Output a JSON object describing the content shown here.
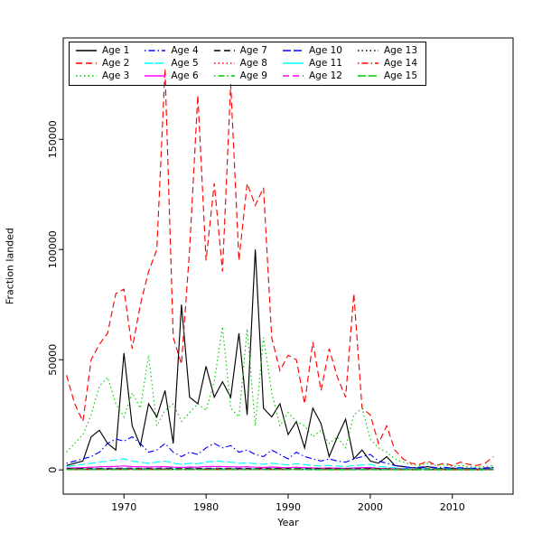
{
  "chart_data": {
    "type": "line",
    "title": "",
    "xlabel": "Year",
    "ylabel": "Fraction landed",
    "x_ticks": [
      1970,
      1980,
      1990,
      2000,
      2010
    ],
    "x_tick_labels": [
      "1970",
      "1980",
      "1990",
      "2000",
      "2010"
    ],
    "y_ticks": [
      0,
      50000,
      100000,
      150000
    ],
    "y_tick_labels": [
      "0",
      "50000",
      "100000",
      "150000"
    ],
    "xlim": [
      1962.6,
      2017.4
    ],
    "ylim": [
      -11000,
      196000
    ],
    "grid": false,
    "legend_position": "top-left-inside",
    "years": [
      1963,
      1964,
      1965,
      1966,
      1967,
      1968,
      1969,
      1970,
      1971,
      1972,
      1973,
      1974,
      1975,
      1976,
      1977,
      1978,
      1979,
      1980,
      1981,
      1982,
      1983,
      1984,
      1985,
      1986,
      1987,
      1988,
      1989,
      1990,
      1991,
      1992,
      1993,
      1994,
      1995,
      1996,
      1997,
      1998,
      1999,
      2000,
      2001,
      2002,
      2003,
      2004,
      2005,
      2006,
      2007,
      2008,
      2009,
      2010,
      2011,
      2012,
      2013,
      2014,
      2015
    ],
    "series": [
      {
        "name": "Age 1",
        "color": "#000000",
        "dash": "solid",
        "values": [
          2000,
          3000,
          4000,
          15000,
          18000,
          12000,
          9000,
          53000,
          20000,
          11000,
          30000,
          24000,
          36000,
          12000,
          75000,
          33000,
          30000,
          47000,
          33000,
          40000,
          33000,
          62000,
          25000,
          100000,
          28000,
          24000,
          30000,
          16000,
          22000,
          10000,
          28000,
          21000,
          6000,
          15000,
          23000,
          5000,
          9000,
          4000,
          3000,
          6000,
          2000,
          1500,
          1000,
          800,
          1500,
          700,
          600,
          800,
          500,
          700,
          400,
          600,
          900
        ]
      },
      {
        "name": "Age 2",
        "color": "#ff0000",
        "dash": "dashed",
        "values": [
          43000,
          30000,
          22000,
          50000,
          57000,
          62000,
          80000,
          82000,
          55000,
          75000,
          90000,
          100000,
          182000,
          60000,
          48000,
          100000,
          170000,
          95000,
          130000,
          90000,
          175000,
          95000,
          130000,
          120000,
          128000,
          60000,
          45000,
          52000,
          50000,
          30000,
          58000,
          36000,
          55000,
          42000,
          33000,
          80000,
          28000,
          25000,
          12000,
          20000,
          9000,
          5000,
          3000,
          2500,
          4000,
          2000,
          3000,
          2000,
          3500,
          2500,
          2000,
          3000,
          6000
        ]
      },
      {
        "name": "Age 3",
        "color": "#00cc00",
        "dash": "dotted",
        "values": [
          8000,
          12000,
          16000,
          25000,
          38000,
          42000,
          30000,
          24000,
          35000,
          28000,
          52000,
          20000,
          27000,
          30000,
          22000,
          26000,
          30000,
          27000,
          40000,
          65000,
          28000,
          24000,
          64000,
          20000,
          60000,
          35000,
          20000,
          26000,
          22000,
          20000,
          15000,
          18000,
          12000,
          15000,
          10000,
          25000,
          28000,
          14000,
          10000,
          8000,
          5000,
          3500,
          2500,
          2000,
          3000,
          2000,
          2500,
          1500,
          2000,
          1500,
          1200,
          1500,
          2000
        ]
      },
      {
        "name": "Age 4",
        "color": "#0000ff",
        "dash": "dotdash",
        "values": [
          3000,
          4000,
          5000,
          6000,
          8000,
          12000,
          14000,
          13000,
          15000,
          12000,
          8000,
          9000,
          12000,
          8000,
          6000,
          8000,
          7000,
          10000,
          12000,
          10000,
          11000,
          8000,
          9000,
          7000,
          6000,
          9000,
          7000,
          5000,
          8000,
          6000,
          5000,
          4000,
          5000,
          4000,
          3500,
          5000,
          6000,
          7000,
          4000,
          3000,
          2000,
          1500,
          1000,
          1200,
          1500,
          1000,
          1200,
          800,
          1000,
          800,
          700,
          900,
          1200
        ]
      },
      {
        "name": "Age 5",
        "color": "#00ffff",
        "dash": "longdash",
        "values": [
          1500,
          2000,
          2500,
          3000,
          3500,
          4000,
          4500,
          5000,
          4000,
          3500,
          3000,
          3500,
          4000,
          3000,
          2500,
          3000,
          2800,
          3500,
          4000,
          3800,
          3500,
          3000,
          3200,
          2800,
          2500,
          3000,
          2600,
          2200,
          2800,
          2400,
          2000,
          1800,
          2000,
          1700,
          1500,
          2000,
          2200,
          2500,
          1500,
          1200,
          900,
          700,
          600,
          500,
          700,
          500,
          600,
          400,
          500,
          400,
          350,
          450,
          600
        ]
      },
      {
        "name": "Age 6",
        "color": "#ff00ff",
        "dash": "solid",
        "values": [
          800,
          900,
          1000,
          1200,
          1400,
          1500,
          1600,
          1800,
          1500,
          1400,
          1300,
          1400,
          1500,
          1200,
          1100,
          1300,
          1200,
          1500,
          1600,
          1500,
          1400,
          1300,
          1400,
          1200,
          1100,
          1300,
          1100,
          1000,
          1200,
          1000,
          900,
          800,
          900,
          800,
          700,
          900,
          1000,
          1100,
          700,
          600,
          500,
          400,
          350,
          300,
          400,
          300,
          350,
          250,
          300,
          250,
          220,
          280,
          350
        ]
      },
      {
        "name": "Age 7",
        "color": "#000000",
        "dash": "dashed",
        "values": [
          600,
          620,
          650,
          680,
          700,
          720,
          750,
          780,
          750,
          720,
          700,
          720,
          750,
          700,
          650,
          700,
          680,
          720,
          750,
          730,
          700,
          680,
          690,
          660,
          630,
          670,
          640,
          600,
          650,
          620,
          580,
          560,
          580,
          540,
          520,
          560,
          580,
          600,
          500,
          460,
          400,
          370,
          340,
          320,
          360,
          320,
          340,
          290,
          320,
          290,
          270,
          300,
          340
        ]
      },
      {
        "name": "Age 8",
        "color": "#ff0000",
        "dash": "dotted",
        "values": [
          480,
          500,
          520,
          540,
          560,
          580,
          600,
          620,
          600,
          580,
          560,
          580,
          600,
          560,
          520,
          560,
          540,
          580,
          600,
          580,
          560,
          540,
          550,
          530,
          500,
          540,
          510,
          480,
          520,
          500,
          460,
          450,
          460,
          430,
          420,
          450,
          460,
          480,
          400,
          370,
          320,
          300,
          270,
          260,
          290,
          260,
          270,
          230,
          260,
          230,
          220,
          240,
          270
        ]
      },
      {
        "name": "Age 9",
        "color": "#00cc00",
        "dash": "dotdash",
        "values": [
          360,
          375,
          390,
          405,
          420,
          435,
          450,
          465,
          450,
          435,
          420,
          435,
          450,
          420,
          390,
          420,
          405,
          435,
          450,
          435,
          420,
          405,
          415,
          400,
          375,
          405,
          385,
          360,
          390,
          375,
          345,
          340,
          345,
          325,
          315,
          340,
          345,
          360,
          300,
          280,
          240,
          225,
          200,
          195,
          215,
          195,
          205,
          175,
          195,
          175,
          165,
          180,
          205
        ]
      },
      {
        "name": "Age 10",
        "color": "#0000ff",
        "dash": "longdash",
        "values": [
          300,
          310,
          325,
          340,
          350,
          360,
          375,
          390,
          375,
          360,
          350,
          360,
          375,
          350,
          325,
          350,
          340,
          360,
          375,
          365,
          350,
          340,
          345,
          330,
          315,
          335,
          320,
          300,
          325,
          310,
          290,
          280,
          290,
          270,
          260,
          280,
          290,
          300,
          250,
          230,
          200,
          185,
          170,
          160,
          180,
          160,
          170,
          145,
          160,
          145,
          135,
          150,
          170
        ]
      },
      {
        "name": "Age 11",
        "color": "#00ffff",
        "dash": "solid",
        "values": [
          240,
          250,
          260,
          270,
          280,
          290,
          300,
          310,
          300,
          290,
          280,
          290,
          300,
          280,
          260,
          280,
          270,
          290,
          300,
          290,
          280,
          270,
          275,
          265,
          250,
          270,
          255,
          240,
          260,
          250,
          230,
          225,
          230,
          215,
          210,
          225,
          230,
          240,
          200,
          185,
          160,
          150,
          135,
          130,
          145,
          130,
          135,
          115,
          130,
          115,
          110,
          120,
          135
        ]
      },
      {
        "name": "Age 12",
        "color": "#ff00ff",
        "dash": "dashed",
        "values": [
          180,
          185,
          195,
          205,
          210,
          215,
          225,
          235,
          225,
          215,
          210,
          215,
          225,
          210,
          195,
          210,
          205,
          215,
          225,
          220,
          210,
          205,
          205,
          200,
          190,
          200,
          190,
          180,
          195,
          185,
          175,
          170,
          175,
          160,
          155,
          170,
          175,
          180,
          150,
          140,
          120,
          110,
          100,
          95,
          110,
          95,
          100,
          85,
          95,
          85,
          80,
          90,
          100
        ]
      },
      {
        "name": "Age 13",
        "color": "#000000",
        "dash": "dotted",
        "values": [
          150,
          155,
          160,
          170,
          175,
          180,
          190,
          195,
          190,
          180,
          175,
          180,
          190,
          175,
          160,
          175,
          170,
          180,
          190,
          185,
          175,
          170,
          170,
          165,
          155,
          170,
          160,
          150,
          160,
          155,
          145,
          140,
          145,
          135,
          130,
          140,
          145,
          150,
          125,
          115,
          100,
          90,
          85,
          80,
          90,
          80,
          85,
          70,
          80,
          70,
          65,
          75,
          85
        ]
      },
      {
        "name": "Age 14",
        "color": "#ff0000",
        "dash": "dotdash",
        "values": [
          120,
          125,
          130,
          135,
          140,
          145,
          150,
          155,
          150,
          145,
          140,
          145,
          150,
          140,
          130,
          140,
          135,
          145,
          150,
          145,
          140,
          135,
          140,
          130,
          125,
          135,
          130,
          120,
          130,
          125,
          115,
          110,
          115,
          105,
          105,
          110,
          115,
          120,
          100,
          90,
          80,
          75,
          70,
          65,
          70,
          65,
          70,
          55,
          65,
          55,
          55,
          60,
          70
        ]
      },
      {
        "name": "Age 15",
        "color": "#00cc00",
        "dash": "longdash",
        "values": [
          90,
          95,
          100,
          100,
          105,
          110,
          115,
          115,
          115,
          110,
          105,
          110,
          115,
          105,
          100,
          105,
          100,
          110,
          115,
          110,
          105,
          100,
          105,
          100,
          95,
          100,
          95,
          90,
          100,
          95,
          85,
          85,
          85,
          80,
          80,
          85,
          85,
          90,
          75,
          70,
          60,
          55,
          50,
          50,
          55,
          50,
          50,
          40,
          50,
          40,
          40,
          45,
          50
        ]
      }
    ]
  }
}
